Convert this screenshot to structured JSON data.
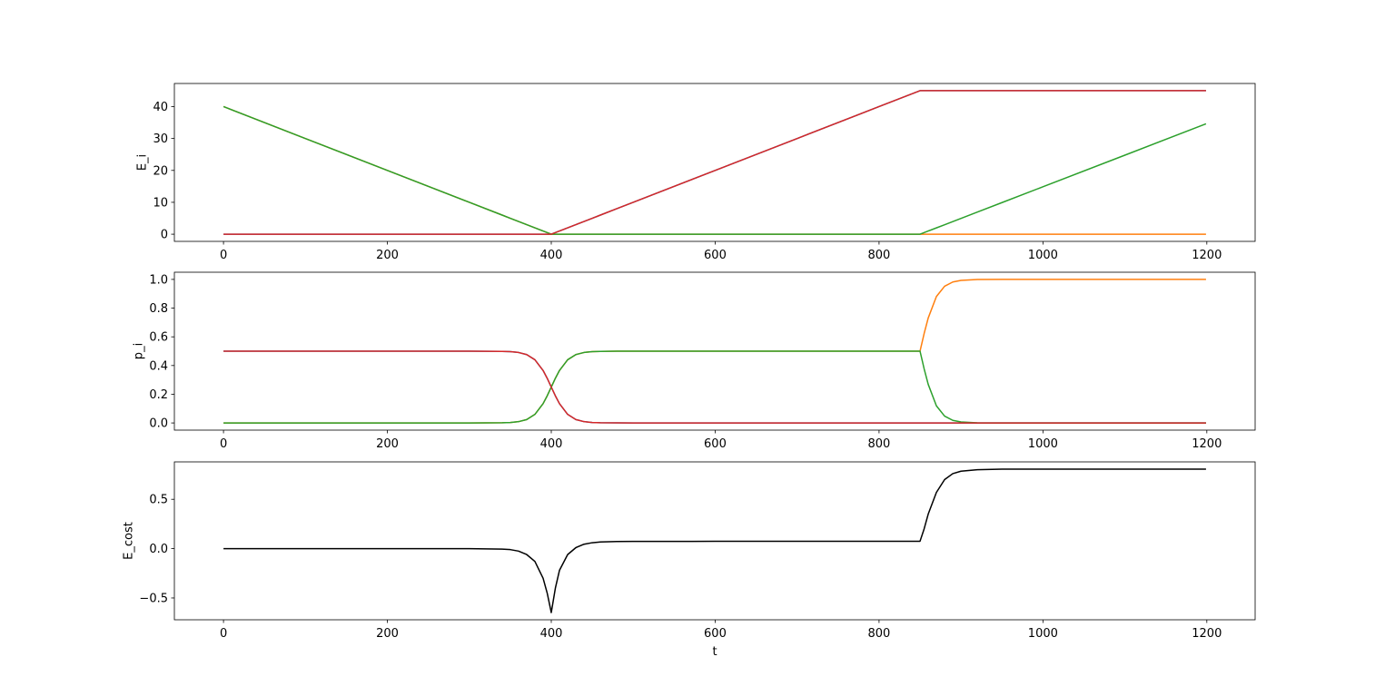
{
  "chart_data": [
    {
      "type": "line",
      "ylabel": "E_i",
      "x": [
        0,
        100,
        200,
        300,
        340,
        350,
        360,
        370,
        380,
        390,
        395,
        400,
        405,
        410,
        420,
        430,
        440,
        450,
        460,
        480,
        500,
        600,
        700,
        800,
        840,
        850,
        855,
        860,
        870,
        880,
        890,
        900,
        920,
        950,
        1000,
        1100,
        1199
      ],
      "series": [
        {
          "color": "#1f77b4",
          "values": [
            0,
            0,
            0,
            0,
            0,
            0,
            0,
            0,
            0,
            0,
            0,
            0,
            0.5,
            1,
            2,
            3,
            4,
            5,
            6,
            8,
            10,
            20,
            30,
            40,
            44,
            45,
            45,
            45,
            45,
            45,
            45,
            45,
            45,
            45,
            45,
            45,
            45
          ]
        },
        {
          "color": "#ff7f0e",
          "values": [
            40,
            30,
            20,
            10,
            6,
            5,
            4,
            3,
            2,
            1,
            0.5,
            0,
            0,
            0,
            0,
            0,
            0,
            0,
            0,
            0,
            0,
            0,
            0,
            0,
            0,
            0,
            0,
            0,
            0,
            0,
            0,
            0,
            0,
            0,
            0,
            0,
            0
          ]
        },
        {
          "color": "#2ca02c",
          "values": [
            40,
            30,
            20,
            10,
            6,
            5,
            4,
            3,
            2,
            1,
            0.5,
            0,
            0,
            0,
            0,
            0,
            0,
            0,
            0,
            0,
            0,
            0,
            0,
            0,
            0,
            0,
            0.5,
            0.99,
            1.98,
            2.97,
            3.96,
            4.96,
            6.94,
            9.91,
            14.87,
            24.78,
            34.6
          ]
        },
        {
          "color": "#d62728",
          "values": [
            0,
            0,
            0,
            0,
            0,
            0,
            0,
            0,
            0,
            0,
            0,
            0,
            0.5,
            1,
            2,
            3,
            4,
            5,
            6,
            8,
            10,
            20,
            30,
            40,
            44,
            45,
            45,
            45,
            45,
            45,
            45,
            45,
            45,
            45,
            45,
            45,
            45
          ]
        }
      ],
      "xlim": [
        -59.95,
        1258.95
      ],
      "xticks": [
        0,
        200,
        400,
        600,
        800,
        1000,
        1200
      ],
      "ylim": [
        -2.25,
        47.25
      ],
      "yticks": [
        0,
        10,
        20,
        30,
        40
      ]
    },
    {
      "type": "line",
      "ylabel": "p_i",
      "x": [
        0,
        100,
        200,
        300,
        340,
        350,
        360,
        370,
        380,
        390,
        395,
        400,
        405,
        410,
        420,
        430,
        440,
        450,
        460,
        480,
        500,
        600,
        700,
        800,
        840,
        850,
        855,
        860,
        870,
        880,
        890,
        900,
        920,
        950,
        1000,
        1100,
        1199
      ],
      "series": [
        {
          "color": "#1f77b4",
          "values": [
            0.5,
            0.5,
            0.5,
            0.5,
            0.4988,
            0.4967,
            0.491,
            0.4763,
            0.4404,
            0.3655,
            0.3112,
            0.25,
            0.1888,
            0.1345,
            0.0596,
            0.0237,
            0.009,
            0.0033,
            0.0012,
            0.0002,
            0,
            0,
            0,
            0,
            0,
            0,
            0,
            0,
            0,
            0,
            0,
            0,
            0,
            0,
            0,
            0,
            0
          ]
        },
        {
          "color": "#ff7f0e",
          "values": [
            0,
            0,
            0,
            0,
            0.0012,
            0.0033,
            0.009,
            0.0237,
            0.0596,
            0.1345,
            0.1888,
            0.25,
            0.3112,
            0.3655,
            0.4404,
            0.4763,
            0.491,
            0.4967,
            0.4988,
            0.4998,
            0.5,
            0.5,
            0.5,
            0.5,
            0.5,
            0.5,
            0.6225,
            0.7311,
            0.8808,
            0.9526,
            0.982,
            0.9933,
            0.9991,
            1,
            1,
            1,
            1
          ]
        },
        {
          "color": "#2ca02c",
          "values": [
            0,
            0,
            0,
            0,
            0.0012,
            0.0033,
            0.009,
            0.0237,
            0.0596,
            0.1345,
            0.1888,
            0.25,
            0.3112,
            0.3655,
            0.4404,
            0.4763,
            0.491,
            0.4967,
            0.4988,
            0.4998,
            0.5,
            0.5,
            0.5,
            0.5,
            0.5,
            0.5,
            0.3775,
            0.2689,
            0.1192,
            0.0474,
            0.018,
            0.0067,
            0.0009,
            0,
            0,
            0,
            0
          ]
        },
        {
          "color": "#d62728",
          "values": [
            0.5,
            0.5,
            0.5,
            0.5,
            0.4988,
            0.4967,
            0.491,
            0.4763,
            0.4404,
            0.3655,
            0.3112,
            0.25,
            0.1888,
            0.1345,
            0.0596,
            0.0237,
            0.009,
            0.0033,
            0.0012,
            0.0002,
            0,
            0,
            0,
            0,
            0,
            0,
            0,
            0,
            0,
            0,
            0,
            0,
            0,
            0,
            0,
            0,
            0
          ]
        }
      ],
      "xlim": [
        -59.95,
        1258.95
      ],
      "xticks": [
        0,
        200,
        400,
        600,
        800,
        1000,
        1200
      ],
      "ylim": [
        -0.05,
        1.05
      ],
      "yticks": [
        {
          "value": 0,
          "label": "0.0"
        },
        0.2,
        0.4,
        0.6,
        0.8,
        {
          "value": 1,
          "label": "1.0"
        }
      ]
    },
    {
      "type": "line",
      "ylabel": "E_cost",
      "xlabel": "t",
      "x": [
        0,
        100,
        200,
        300,
        340,
        350,
        360,
        370,
        380,
        390,
        395,
        400,
        405,
        410,
        420,
        430,
        440,
        450,
        460,
        480,
        500,
        600,
        700,
        800,
        840,
        850,
        855,
        860,
        870,
        880,
        890,
        900,
        920,
        950,
        1000,
        1100,
        1199
      ],
      "series": [
        {
          "color": "#000000",
          "values": [
            0,
            0,
            0,
            0,
            -0.005,
            -0.01,
            -0.025,
            -0.06,
            -0.13,
            -0.3,
            -0.45,
            -0.648,
            -0.4,
            -0.22,
            -0.06,
            0.01,
            0.045,
            0.06,
            0.068,
            0.072,
            0.073,
            0.074,
            0.074,
            0.075,
            0.075,
            0.075,
            0.2,
            0.35,
            0.57,
            0.7,
            0.76,
            0.785,
            0.8,
            0.805,
            0.806,
            0.806,
            0.806
          ]
        }
      ],
      "xlim": [
        -59.95,
        1258.95
      ],
      "xticks": [
        0,
        200,
        400,
        600,
        800,
        1000,
        1200
      ],
      "ylim": [
        -0.721,
        0.879
      ],
      "yticks": [
        {
          "value": -0.5,
          "label": "−0.5"
        },
        {
          "value": 0,
          "label": "0.0"
        },
        0.5
      ]
    }
  ]
}
